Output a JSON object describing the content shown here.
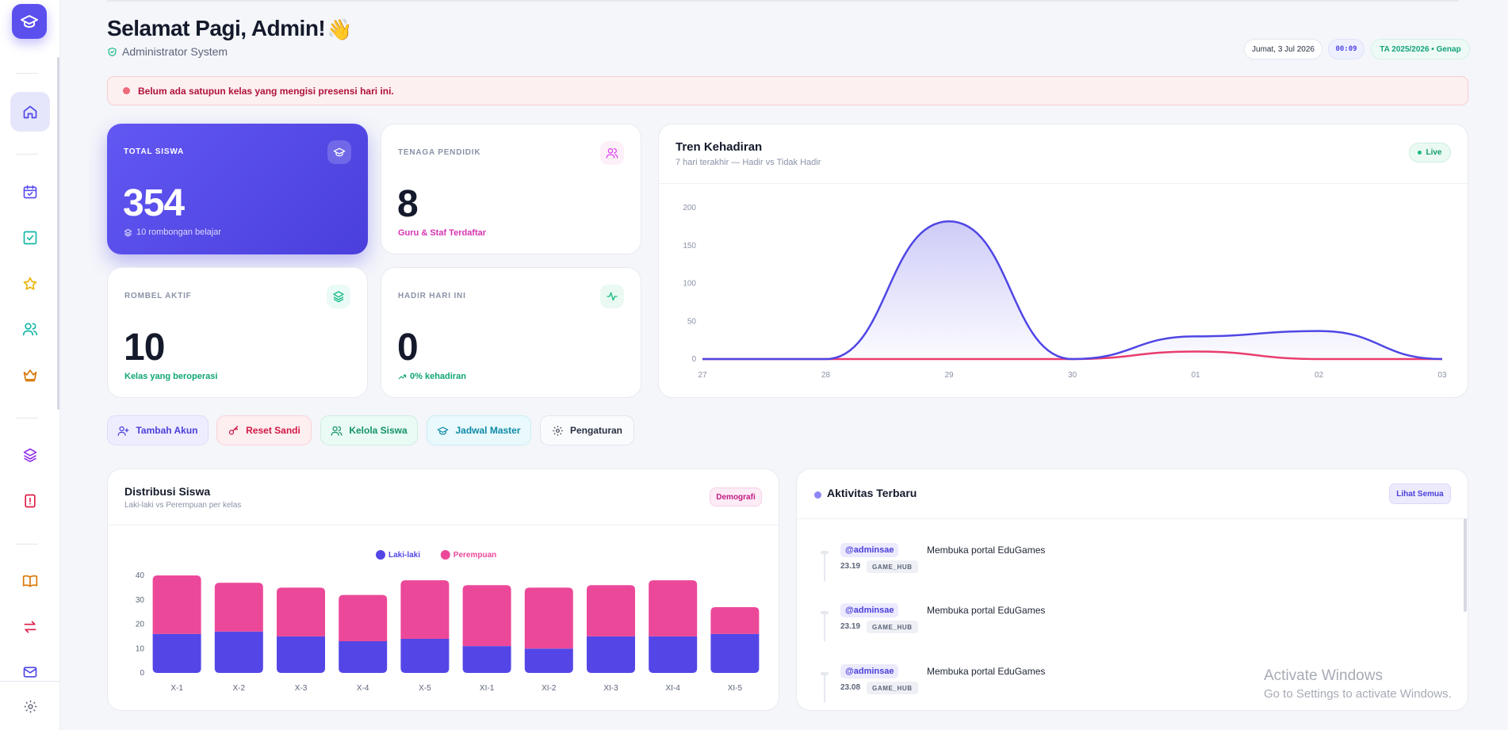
{
  "header": {
    "greeting": "Selamat Pagi, Admin!",
    "wave": "👋",
    "role": "Administrator System",
    "date": "Jumat, 3 Jul 2026",
    "time": "00:09",
    "academic_year": "TA 2025/2026 • Genap"
  },
  "alert": {
    "text": "Belum ada satupun kelas yang mengisi presensi hari ini.",
    "color": "#b0123a"
  },
  "sidebar": {
    "items": [
      {
        "icon": "home-icon",
        "active": true
      },
      {
        "icon": "calendar-check-icon"
      },
      {
        "icon": "checkbox-icon"
      },
      {
        "icon": "star-icon"
      },
      {
        "icon": "users-icon"
      },
      {
        "icon": "crown-icon"
      },
      {
        "icon": "layers-icon"
      },
      {
        "icon": "alert-file-icon"
      },
      {
        "icon": "book-icon"
      },
      {
        "icon": "swap-icon"
      },
      {
        "icon": "mail-icon"
      },
      {
        "icon": "settings-icon"
      }
    ]
  },
  "stats": {
    "total_siswa": {
      "label": "TOTAL SISWA",
      "value": "354",
      "sub": "10 rombongan belajar"
    },
    "tenaga_pendidik": {
      "label": "TENAGA PENDIDIK",
      "value": "8",
      "sub": "Guru & Staf Terdaftar"
    },
    "rombel_aktif": {
      "label": "ROMBEL AKTIF",
      "value": "10",
      "sub": "Kelas yang beroperasi"
    },
    "hadir_hari_ini": {
      "label": "HADIR HARI INI",
      "value": "0",
      "sub": "0% kehadiran"
    }
  },
  "trend": {
    "title": "Tren Kehadiran",
    "subtitle": "7 hari terakhir — Hadir vs Tidak Hadir",
    "badge": "Live"
  },
  "actions": [
    {
      "label": "Tambah Akun",
      "icon": "user-plus-icon"
    },
    {
      "label": "Reset Sandi",
      "icon": "key-icon"
    },
    {
      "label": "Kelola Siswa",
      "icon": "users-icon"
    },
    {
      "label": "Jadwal Master",
      "icon": "graduation-cap-icon"
    },
    {
      "label": "Pengaturan",
      "icon": "gear-icon"
    }
  ],
  "distribusi": {
    "title": "Distribusi Siswa",
    "subtitle": "Laki-laki vs Perempuan per kelas",
    "badge": "Demografi"
  },
  "activity": {
    "title": "Aktivitas Terbaru",
    "button": "Lihat Semua",
    "items": [
      {
        "user": "@adminsae",
        "text": "Membuka portal EduGames",
        "time": "23.19",
        "tag": "GAME_HUB"
      },
      {
        "user": "@adminsae",
        "text": "Membuka portal EduGames",
        "time": "23.19",
        "tag": "GAME_HUB"
      },
      {
        "user": "@adminsae",
        "text": "Membuka portal EduGames",
        "time": "23.08",
        "tag": "GAME_HUB"
      }
    ]
  },
  "watermark": {
    "line1": "Activate Windows",
    "line2": "Go to Settings to activate Windows."
  },
  "chart_data": [
    {
      "type": "area",
      "x": [
        "27",
        "28",
        "29",
        "30",
        "01",
        "02",
        "03"
      ],
      "ylim": [
        0,
        200
      ],
      "yticks": [
        0,
        50,
        100,
        150,
        200
      ],
      "series": [
        {
          "values": [
            0,
            0,
            182,
            0,
            30,
            37,
            0
          ],
          "color": "#4f46e5"
        },
        {
          "values": [
            0,
            0,
            0,
            0,
            10,
            0,
            0
          ],
          "color": "#e93d6e"
        }
      ]
    },
    {
      "type": "bar",
      "categories": [
        "X-1",
        "X-2",
        "X-3",
        "X-4",
        "X-5",
        "XI-1",
        "XI-2",
        "XI-3",
        "XI-4",
        "XI-5"
      ],
      "ylim": [
        0,
        40
      ],
      "yticks": [
        0,
        10,
        20,
        30,
        40
      ],
      "legend": "top",
      "series": [
        {
          "name": "Laki-laki",
          "values": [
            16,
            17,
            15,
            13,
            14,
            11,
            10,
            15,
            15,
            16
          ],
          "color": "#5446e6"
        },
        {
          "name": "Perempuan",
          "values": [
            24,
            20,
            20,
            19,
            24,
            25,
            25,
            21,
            23,
            11
          ],
          "color": "#ec4899"
        }
      ]
    }
  ]
}
